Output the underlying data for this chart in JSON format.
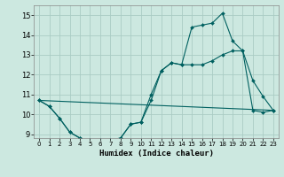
{
  "xlabel": "Humidex (Indice chaleur)",
  "bg_color": "#cce8e0",
  "grid_color": "#aaccc4",
  "line_color": "#006060",
  "xlim": [
    -0.5,
    23.5
  ],
  "ylim": [
    8.8,
    15.5
  ],
  "yticks": [
    9,
    10,
    11,
    12,
    13,
    14,
    15
  ],
  "xticks": [
    0,
    1,
    2,
    3,
    4,
    5,
    6,
    7,
    8,
    9,
    10,
    11,
    12,
    13,
    14,
    15,
    16,
    17,
    18,
    19,
    20,
    21,
    22,
    23
  ],
  "series1_x": [
    0,
    1,
    2,
    3,
    4,
    5,
    6,
    7,
    8,
    9,
    10,
    11,
    12,
    13,
    14,
    15,
    16,
    17,
    18,
    19,
    20,
    21,
    22,
    23
  ],
  "series1_y": [
    10.7,
    10.4,
    9.8,
    9.1,
    8.8,
    8.7,
    8.7,
    8.7,
    8.8,
    9.5,
    9.6,
    10.7,
    12.2,
    12.6,
    12.5,
    14.4,
    14.5,
    14.6,
    15.1,
    13.7,
    13.2,
    11.7,
    10.9,
    10.2
  ],
  "series2_x": [
    0,
    1,
    2,
    3,
    4,
    5,
    6,
    7,
    8,
    9,
    10,
    11,
    12,
    13,
    14,
    15,
    16,
    17,
    18,
    19,
    20,
    21,
    22,
    23
  ],
  "series2_y": [
    10.7,
    10.4,
    9.8,
    9.1,
    8.8,
    8.7,
    8.7,
    8.7,
    8.8,
    9.5,
    9.6,
    11.0,
    12.2,
    12.6,
    12.5,
    12.5,
    12.5,
    12.7,
    13.0,
    13.2,
    13.2,
    10.2,
    10.1,
    10.2
  ],
  "series3_x": [
    0,
    23
  ],
  "series3_y": [
    10.7,
    10.2
  ]
}
